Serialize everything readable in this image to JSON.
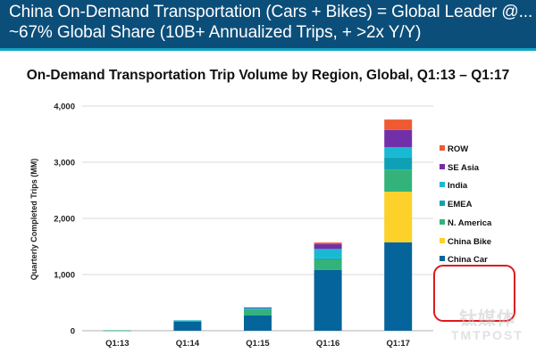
{
  "header": {
    "line1": "China On-Demand Transportation (Cars + Bikes) = Global Leader @...",
    "line2": "~67% Global Share (10B+ Annualized Trips, + >2x Y/Y)"
  },
  "colors": {
    "header_bg": "#0c4e7a",
    "header_strip": "#13a3c4",
    "highlight": "#e0191e"
  },
  "watermark": {
    "cn": "钛媒体",
    "en": "TMTPOST"
  },
  "chart_data": {
    "type": "bar",
    "stacked": true,
    "title": "On-Demand Transportation Trip Volume by Region, Global, Q1:13 – Q1:17",
    "xlabel": "",
    "ylabel": "Quarterly Completed Trips (MM)",
    "ylim": [
      0,
      4000
    ],
    "yticks": [
      0,
      1000,
      2000,
      3000,
      4000
    ],
    "ytick_labels": [
      "0",
      "1,000",
      "2,000",
      "3,000",
      "4,000"
    ],
    "grid": true,
    "legend_position": "right",
    "categories": [
      "Q1:13",
      "Q1:14",
      "Q1:15",
      "Q1:16",
      "Q1:17"
    ],
    "series": [
      {
        "name": "China Car",
        "color": "#05649b",
        "values": [
          5,
          160,
          270,
          1080,
          1575
        ]
      },
      {
        "name": "China Bike",
        "color": "#fbd12a",
        "values": [
          0,
          0,
          0,
          0,
          900
        ]
      },
      {
        "name": "N. America",
        "color": "#33b37a",
        "values": [
          2,
          20,
          100,
          190,
          395
        ]
      },
      {
        "name": "EMEA",
        "color": "#0ea1b6",
        "values": [
          0,
          3,
          15,
          20,
          210
        ]
      },
      {
        "name": "India",
        "color": "#19b9d3",
        "values": [
          0,
          2,
          25,
          165,
          190
        ]
      },
      {
        "name": "SE Asia",
        "color": "#7230a8",
        "values": [
          0,
          0,
          5,
          90,
          305
        ]
      },
      {
        "name": "ROW",
        "color": "#ef5a32",
        "values": [
          0,
          0,
          0,
          25,
          185
        ]
      }
    ],
    "legend_order": [
      "ROW",
      "SE Asia",
      "India",
      "EMEA",
      "N. America",
      "China Bike",
      "China Car"
    ],
    "highlighted_legend": [
      "China Bike",
      "China Car"
    ]
  }
}
